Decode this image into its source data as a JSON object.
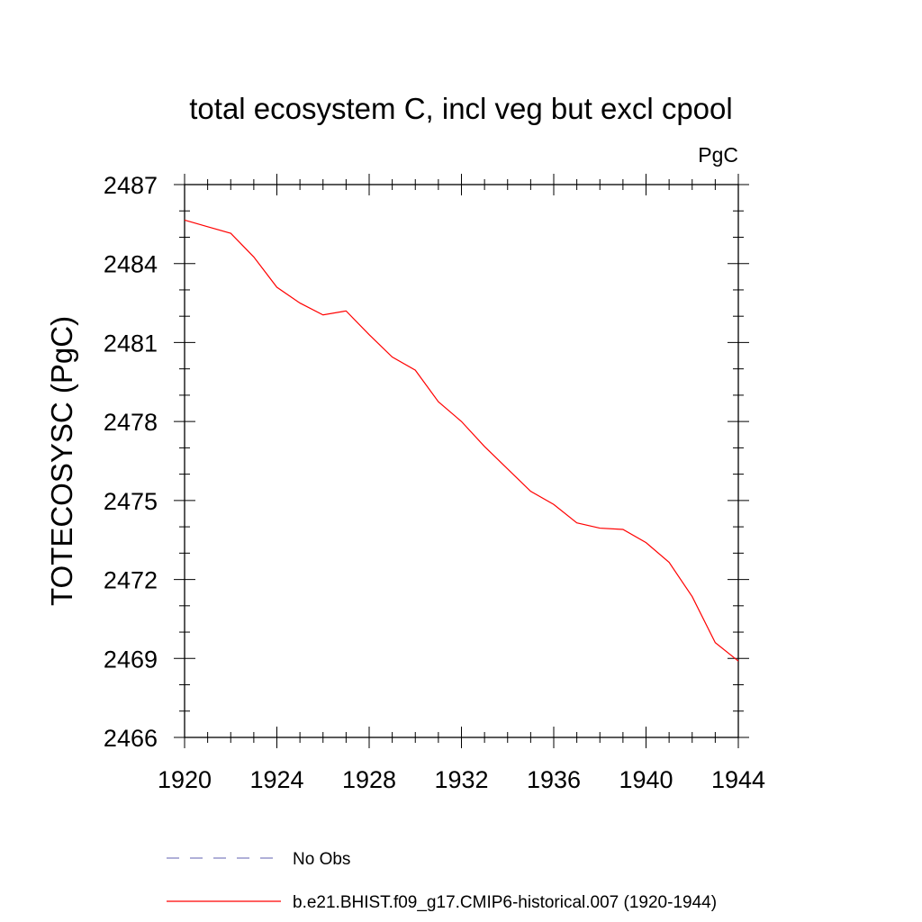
{
  "chart_data": {
    "type": "line",
    "title": "total ecosystem C, incl veg but excl cpool",
    "units": "PgC",
    "xlabel": "",
    "ylabel": "TOTECOSYSC  (PgC)",
    "xlim": [
      1920,
      1944
    ],
    "ylim": [
      2466,
      2487
    ],
    "xticks": [
      1920,
      1924,
      1928,
      1932,
      1936,
      1940,
      1944
    ],
    "yticks": [
      2466,
      2469,
      2472,
      2475,
      2478,
      2481,
      2484,
      2487
    ],
    "grid": false,
    "legend_position": "bottom",
    "colors": {
      "model": "#ff0000",
      "obs": "#8080c0",
      "axis": "#000000"
    },
    "series": [
      {
        "name": "b.e21.BHIST.f09_g17.CMIP6-historical.007 (1920-1944)",
        "style": "solid",
        "x": [
          1920,
          1921,
          1922,
          1923,
          1924,
          1925,
          1926,
          1927,
          1928,
          1929,
          1930,
          1931,
          1932,
          1933,
          1934,
          1935,
          1936,
          1937,
          1938,
          1939,
          1940,
          1941,
          1942,
          1943,
          1944
        ],
        "values": [
          2485.65,
          2485.4,
          2485.15,
          2484.25,
          2483.1,
          2482.5,
          2482.05,
          2482.2,
          2481.3,
          2480.45,
          2479.95,
          2478.75,
          2478.0,
          2477.05,
          2476.2,
          2475.35,
          2474.85,
          2474.15,
          2473.95,
          2473.9,
          2473.4,
          2472.65,
          2471.35,
          2469.6,
          2468.9
        ]
      },
      {
        "name": "No Obs",
        "style": "dashed",
        "x": [],
        "values": []
      }
    ]
  }
}
